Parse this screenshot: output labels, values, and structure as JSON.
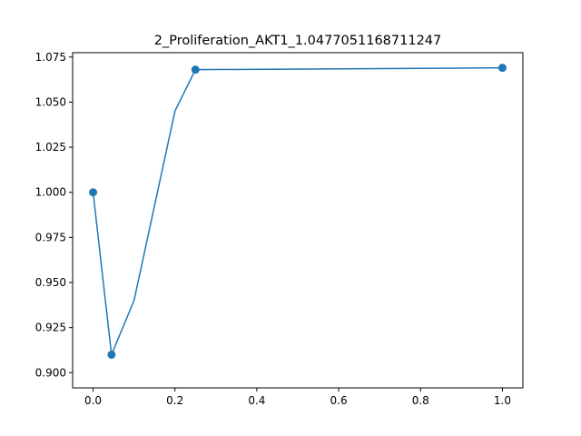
{
  "chart_data": {
    "type": "line",
    "title": "2_Proliferation_AKT1_1.0477051168711247",
    "xlabel": "",
    "ylabel": "",
    "xlim": [
      -0.05,
      1.05
    ],
    "ylim": [
      0.8916,
      1.0774
    ],
    "x_ticks": [
      0.0,
      0.2,
      0.4,
      0.6,
      0.8,
      1.0
    ],
    "x_tick_labels": [
      "0.0",
      "0.2",
      "0.4",
      "0.6",
      "0.8",
      "1.0"
    ],
    "y_ticks": [
      0.9,
      0.925,
      0.95,
      0.975,
      1.0,
      1.025,
      1.05,
      1.075
    ],
    "y_tick_labels": [
      "0.900",
      "0.925",
      "0.950",
      "0.975",
      "1.000",
      "1.025",
      "1.050",
      "1.075"
    ],
    "grid": false,
    "series": [
      {
        "color": "#1f77b4",
        "x": [
          0.0,
          0.045,
          0.1,
          0.2,
          0.25,
          1.0
        ],
        "y": [
          1.0,
          0.91,
          0.94,
          1.045,
          1.068,
          1.069
        ],
        "marker_x": [
          0.0,
          0.045,
          0.25,
          1.0
        ],
        "marker_y": [
          1.0,
          0.91,
          1.068,
          1.069
        ]
      }
    ]
  }
}
